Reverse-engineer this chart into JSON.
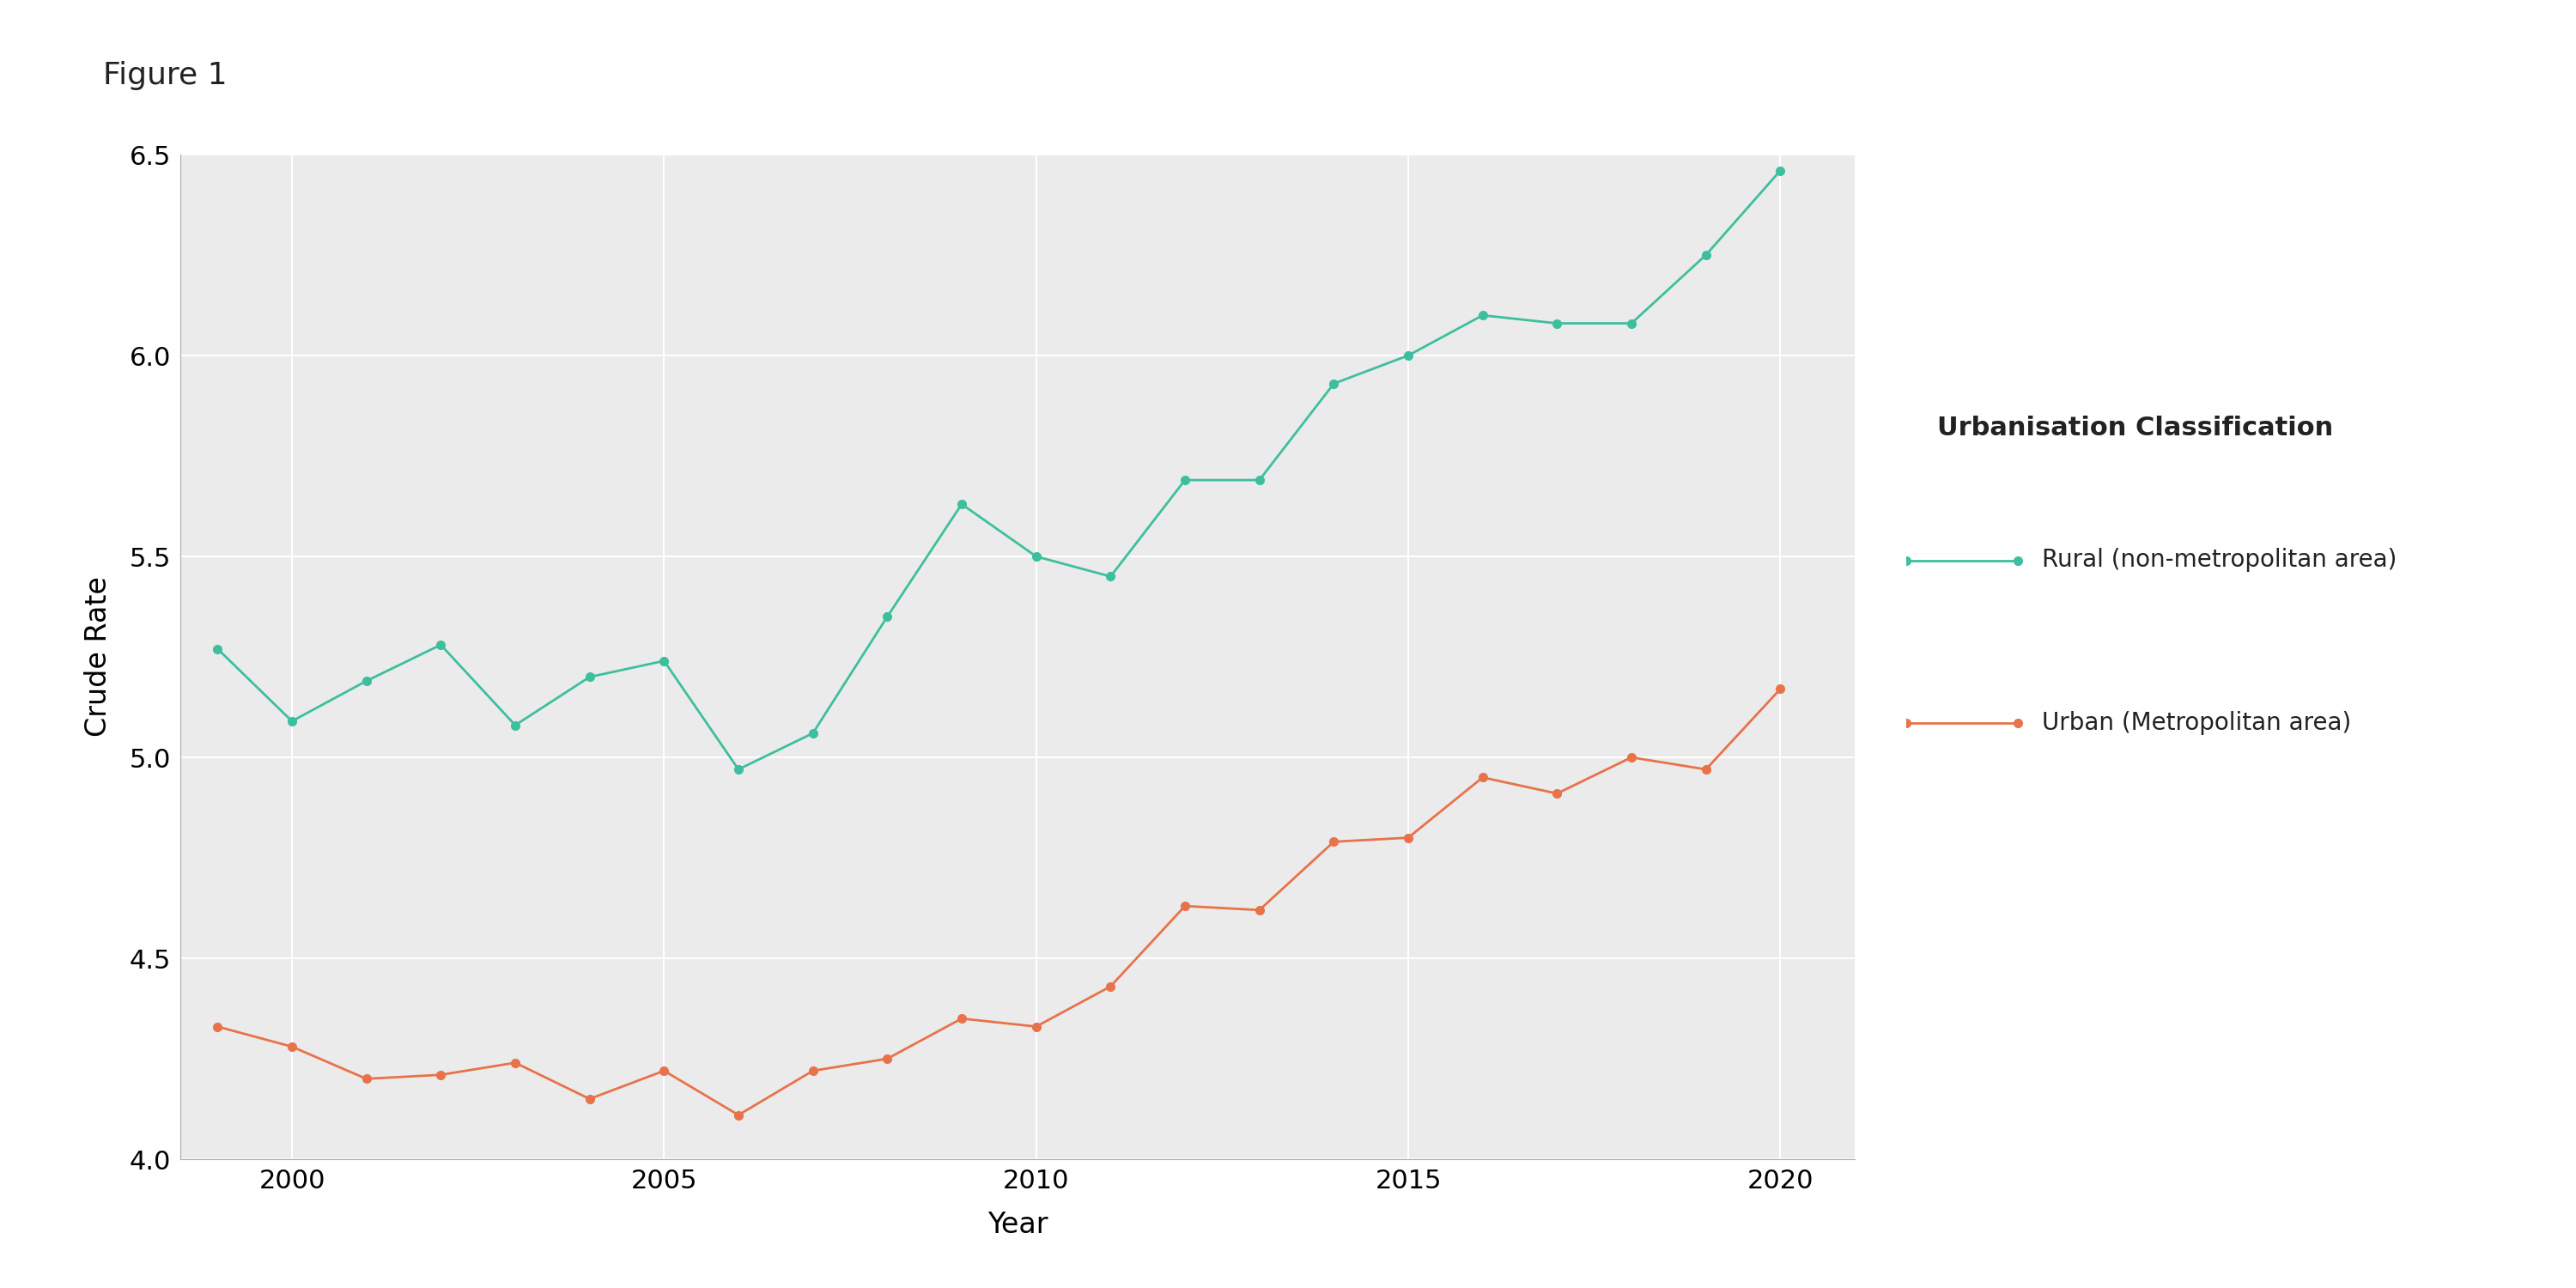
{
  "title": "Figure 1",
  "xlabel": "Year",
  "ylabel": "Crude Rate",
  "background_color": "#ffffff",
  "plot_background_color": "#ebebeb",
  "grid_color": "#ffffff",
  "ylim": [
    4.0,
    6.5
  ],
  "xlim": [
    1998.5,
    2021.0
  ],
  "yticks": [
    4.0,
    4.5,
    5.0,
    5.5,
    6.0,
    6.5
  ],
  "xticks": [
    2000,
    2005,
    2010,
    2015,
    2020
  ],
  "rural": {
    "years": [
      1999,
      2000,
      2001,
      2002,
      2003,
      2004,
      2005,
      2006,
      2007,
      2008,
      2009,
      2010,
      2011,
      2012,
      2013,
      2014,
      2015,
      2016,
      2017,
      2018,
      2019,
      2020
    ],
    "values": [
      5.27,
      5.09,
      5.19,
      5.28,
      5.08,
      5.2,
      5.24,
      4.97,
      5.06,
      5.35,
      5.63,
      5.5,
      5.45,
      5.69,
      5.69,
      5.93,
      6.0,
      6.1,
      6.08,
      6.08,
      6.25,
      6.46
    ],
    "color": "#3dbf9e",
    "label": "Rural (non-metropolitan area)"
  },
  "urban": {
    "years": [
      1999,
      2000,
      2001,
      2002,
      2003,
      2004,
      2005,
      2006,
      2007,
      2008,
      2009,
      2010,
      2011,
      2012,
      2013,
      2014,
      2015,
      2016,
      2017,
      2018,
      2019,
      2020
    ],
    "values": [
      4.33,
      4.28,
      4.2,
      4.21,
      4.24,
      4.15,
      4.22,
      4.11,
      4.22,
      4.25,
      4.35,
      4.33,
      4.43,
      4.63,
      4.62,
      4.79,
      4.8,
      4.95,
      4.91,
      5.0,
      4.97,
      5.17
    ],
    "color": "#e8724a",
    "label": "Urban (Metropolitan area)"
  },
  "legend_title": "Urbanisation Classification",
  "marker": "o",
  "marker_size": 7,
  "line_width": 2.0,
  "title_fontsize": 26,
  "axis_label_fontsize": 24,
  "tick_fontsize": 22,
  "legend_title_fontsize": 22,
  "legend_fontsize": 20
}
